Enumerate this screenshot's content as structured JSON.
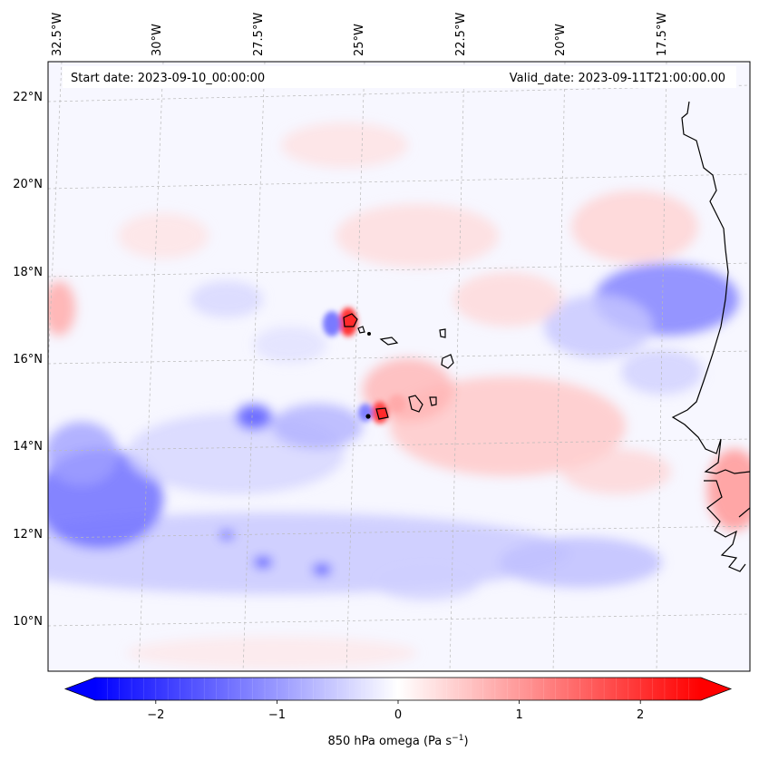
{
  "header": {
    "start_date": "Start date: 2023-09-10_00:00:00",
    "valid_date": "Valid_date: 2023-09-11T21:00:00.00"
  },
  "map": {
    "lon_labels": [
      "32.5°W",
      "30°W",
      "27.5°W",
      "25°W",
      "22.5°W",
      "20°W",
      "17.5°W"
    ],
    "lat_labels": [
      "22°N",
      "20°N",
      "18°N",
      "16°N",
      "14°N",
      "12°N",
      "10°N"
    ],
    "gridlines": "dashed"
  },
  "colorbar": {
    "tick_labels": [
      "−2",
      "−1",
      "0",
      "1",
      "2"
    ],
    "ticks": [
      -2,
      -1,
      0,
      1,
      2
    ],
    "range": [
      -2.5,
      2.5
    ],
    "label_main": "850 hPa omega (Pa s",
    "label_sup": "−1",
    "label_close": ")",
    "colormap": "bwr",
    "colors": {
      "low": "#0000ff",
      "mid": "#ffffff",
      "high": "#ff0000"
    },
    "extend": "both"
  }
}
